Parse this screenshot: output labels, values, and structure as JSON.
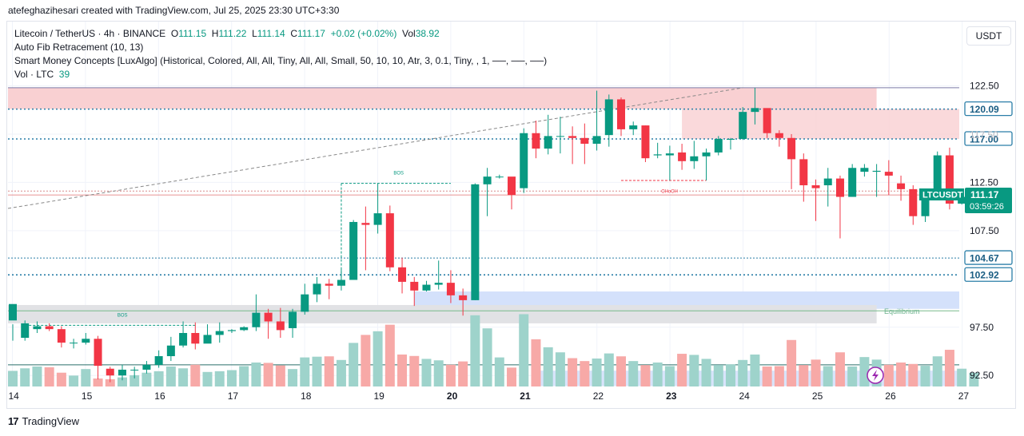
{
  "header": {
    "author_line": "atefeghazihesari created with TradingView.com, Jul 25, 2025 23:30 UTC+3:30"
  },
  "legend": {
    "symbol": "Litecoin / TetherUS · 4h · BINANCE",
    "o_label": "O",
    "o": "111.15",
    "h_label": "H",
    "h": "111.22",
    "l_label": "L",
    "l": "111.14",
    "c_label": "C",
    "c": "111.17",
    "change": "+0.02 (+0.02%)",
    "vol_label": "Vol",
    "vol": "38.92",
    "indicator1": "Auto Fib Retracement (10, 13)",
    "indicator2": "Smart Money Concepts [LuxAlgo] (Historical, Colored, All, All, Tiny, All, All, Small, 50, 10, 10, Atr, 3, 0.1, Tiny, , 1, ──, ──, ──)",
    "indicator3": "Vol · LTC",
    "indicator3_value": "39"
  },
  "currency_button": "USDT",
  "brand": {
    "logo": "17",
    "name": "TradingView"
  },
  "chart_data": {
    "type": "candlestick",
    "symbol": "LTCUSDT",
    "timeframe": "4h",
    "y_axis": {
      "ticks": [
        92.5,
        97.5,
        107.5,
        112.5,
        117.5,
        122.5
      ],
      "range": [
        91.4,
        124.5
      ]
    },
    "x_axis": {
      "ticks": [
        "14",
        "15",
        "16",
        "17",
        "18",
        "19",
        "20",
        "21",
        "22",
        "23",
        "24",
        "25",
        "26",
        "27"
      ],
      "bold_ticks": [
        "20",
        "21",
        "23"
      ]
    },
    "candles": [
      [
        98.2,
        99.9,
        97.8,
        96.1
      ],
      [
        96.4,
        97.9,
        98.2,
        96.1
      ],
      [
        97.3,
        97.6,
        98.1,
        96.9
      ],
      [
        97.6,
        97.3,
        97.9,
        97.1
      ],
      [
        97.3,
        95.9,
        97.6,
        95.4
      ],
      [
        95.9,
        95.9,
        96.3,
        95.3
      ],
      [
        95.9,
        96.3,
        96.9,
        95.7
      ],
      [
        96.3,
        93.5,
        96.6,
        92.1
      ],
      [
        93.2,
        92.5,
        93.4,
        91.8
      ],
      [
        92.5,
        93.1,
        93.6,
        92.0
      ],
      [
        93.1,
        93.1,
        93.4,
        92.2
      ],
      [
        93.1,
        93.6,
        94.0,
        92.7
      ],
      [
        93.6,
        94.5,
        95.1,
        93.3
      ],
      [
        94.5,
        95.6,
        96.5,
        94.0
      ],
      [
        95.6,
        96.9,
        98.1,
        95.4
      ],
      [
        96.9,
        95.8,
        98.0,
        95.2
      ],
      [
        95.8,
        96.7,
        97.8,
        96.0
      ],
      [
        96.7,
        97.1,
        98.0,
        95.9
      ],
      [
        97.1,
        97.2,
        97.3,
        96.9
      ],
      [
        97.2,
        97.5,
        97.6,
        97.1
      ],
      [
        97.5,
        99.0,
        100.9,
        97.1
      ],
      [
        99.0,
        98.1,
        99.4,
        96.3
      ],
      [
        98.1,
        97.2,
        99.5,
        96.4
      ],
      [
        97.4,
        99.1,
        99.4,
        96.4
      ],
      [
        99.1,
        100.9,
        102.0,
        98.8
      ],
      [
        100.9,
        102.0,
        102.7,
        100.1
      ],
      [
        102.0,
        101.8,
        102.5,
        100.4
      ],
      [
        101.8,
        102.4,
        103.5,
        101.3
      ],
      [
        102.4,
        108.4,
        108.6,
        102.4
      ],
      [
        108.3,
        108.1,
        110.0,
        103.4
      ],
      [
        108.1,
        109.3,
        112.4,
        107.2
      ],
      [
        109.3,
        103.7,
        110.1,
        103.3
      ],
      [
        103.7,
        102.2,
        104.7,
        101.0
      ],
      [
        102.2,
        101.3,
        102.7,
        99.7
      ],
      [
        101.3,
        101.9,
        102.3,
        101.2
      ],
      [
        101.9,
        102.1,
        104.4,
        101.4
      ],
      [
        102.1,
        100.8,
        103.4,
        100.0
      ],
      [
        100.8,
        100.3,
        101.5,
        98.7
      ],
      [
        100.3,
        112.3,
        112.4,
        100.3
      ],
      [
        112.3,
        113.1,
        114.0,
        109.0
      ],
      [
        113.1,
        113.1,
        113.3,
        112.9
      ],
      [
        113.1,
        111.2,
        112.8,
        109.7
      ],
      [
        111.9,
        117.6,
        118.1,
        111.4
      ],
      [
        117.6,
        116.0,
        118.9,
        115.0
      ],
      [
        116.0,
        117.3,
        119.5,
        115.4
      ],
      [
        117.3,
        117.3,
        119.3,
        115.5
      ],
      [
        117.3,
        117.1,
        118.3,
        114.4
      ],
      [
        117.1,
        116.5,
        118.6,
        114.4
      ],
      [
        116.5,
        117.3,
        122.0,
        115.8
      ],
      [
        117.4,
        121.1,
        121.6,
        116.2
      ],
      [
        121.1,
        118.0,
        121.3,
        117.3
      ],
      [
        118.0,
        118.4,
        118.8,
        117.4
      ],
      [
        118.4,
        115.0,
        118.4,
        114.6
      ],
      [
        115.3,
        115.4,
        116.6,
        115.0
      ],
      [
        115.3,
        115.5,
        116.3,
        112.7
      ],
      [
        115.6,
        114.7,
        116.5,
        113.8
      ],
      [
        114.7,
        115.2,
        116.8,
        113.9
      ],
      [
        115.2,
        115.6,
        116.0,
        112.7
      ],
      [
        115.6,
        117.0,
        117.3,
        115.3
      ],
      [
        117.0,
        117.0,
        117.1,
        115.9
      ],
      [
        117.0,
        119.8,
        120.3,
        116.9
      ],
      [
        119.8,
        120.2,
        122.3,
        118.5
      ],
      [
        120.2,
        117.6,
        120.1,
        117.1
      ],
      [
        117.6,
        117.1,
        117.9,
        116.2
      ],
      [
        117.1,
        114.9,
        117.5,
        111.8
      ],
      [
        114.9,
        112.2,
        115.5,
        110.5
      ],
      [
        112.2,
        111.9,
        112.8,
        108.5
      ],
      [
        112.2,
        112.9,
        114.0,
        110.0
      ],
      [
        112.9,
        111.0,
        113.2,
        106.7
      ],
      [
        111.0,
        114.0,
        114.4,
        111.0
      ],
      [
        113.6,
        114.0,
        114.4,
        113.1
      ],
      [
        113.6,
        113.7,
        114.4,
        111.0
      ],
      [
        113.6,
        113.2,
        114.8,
        111.2
      ],
      [
        112.4,
        111.8,
        113.2,
        110.6
      ],
      [
        111.8,
        109.0,
        112.2,
        108.1
      ],
      [
        109.0,
        110.7,
        111.4,
        108.4
      ],
      [
        110.7,
        115.3,
        115.7,
        110.9
      ],
      [
        115.3,
        110.3,
        116.1,
        109.7
      ],
      [
        110.3,
        111.0,
        111.8,
        110.2
      ],
      [
        111.2,
        111.2,
        111.2,
        111.2
      ]
    ],
    "volume_bars_rel": [
      0.43,
      0.5,
      0.55,
      0.53,
      0.38,
      0.3,
      0.48,
      0.22,
      0.2,
      0.25,
      0.31,
      0.38,
      0.42,
      0.55,
      0.5,
      0.6,
      0.4,
      0.42,
      0.45,
      0.56,
      0.66,
      0.65,
      0.58,
      0.48,
      0.8,
      0.82,
      0.83,
      0.73,
      1.2,
      1.42,
      1.52,
      1.7,
      0.88,
      0.84,
      0.76,
      0.72,
      0.6,
      0.69,
      1.96,
      1.6,
      0.8,
      0.52,
      1.99,
      1.3,
      1.08,
      0.94,
      0.78,
      0.7,
      0.77,
      0.91,
      0.83,
      0.7,
      0.59,
      0.66,
      0.56,
      0.9,
      0.87,
      0.76,
      0.59,
      0.61,
      0.73,
      0.88,
      0.55,
      0.56,
      1.28,
      0.59,
      0.74,
      0.56,
      0.94,
      0.55,
      0.81,
      0.74,
      0.6,
      0.66,
      0.62,
      0.57,
      0.83,
      1.01,
      0.49,
      0.38
    ],
    "price_labels": [
      {
        "label": "122.50",
        "value": 122.5
      },
      {
        "label": "120.09",
        "value": 120.09
      },
      {
        "label": "117.00",
        "value": 117.0
      },
      {
        "label": "112.50",
        "value": 112.5
      },
      {
        "label": "107.50",
        "value": 107.5
      },
      {
        "label": "104.67",
        "value": 104.67
      },
      {
        "label": "102.92",
        "value": 102.92
      },
      {
        "label": "97.50",
        "value": 97.5
      },
      {
        "label": "92.50",
        "value": 92.5
      }
    ],
    "hidden_tick_fragment": "117.50",
    "last_price": {
      "symbol": "LTCUSDT",
      "value": "111.17",
      "countdown": "03:59:26"
    },
    "annotations": {
      "bos1": "BOS",
      "bos2": "BOS",
      "choch": "CHoCH",
      "equilibrium": "Equilibrium"
    },
    "colors": {
      "up": "#089981",
      "down": "#f23645",
      "vol_up": "#9ed3cb",
      "vol_down": "#f7a9a7",
      "fib": "#2a7ea8",
      "supply": "#f9d0d2",
      "demand": "#d4e1fb",
      "equilibrium": "#e1e2e5",
      "grid": "#f0f3fa"
    }
  }
}
